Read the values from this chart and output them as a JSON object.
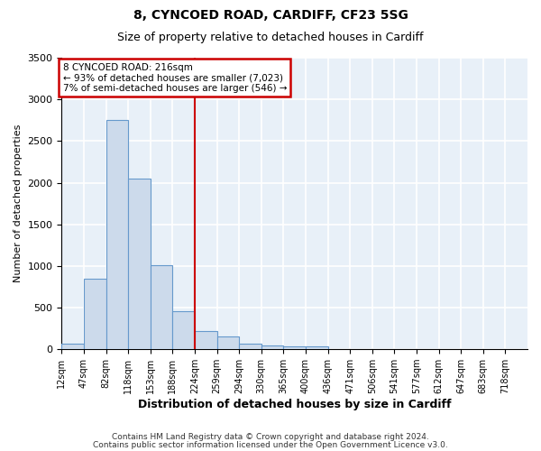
{
  "title1": "8, CYNCOED ROAD, CARDIFF, CF23 5SG",
  "title2": "Size of property relative to detached houses in Cardiff",
  "xlabel": "Distribution of detached houses by size in Cardiff",
  "ylabel": "Number of detached properties",
  "categories": [
    "12sqm",
    "47sqm",
    "82sqm",
    "118sqm",
    "153sqm",
    "188sqm",
    "224sqm",
    "259sqm",
    "294sqm",
    "330sqm",
    "365sqm",
    "400sqm",
    "436sqm",
    "471sqm",
    "506sqm",
    "541sqm",
    "577sqm",
    "612sqm",
    "647sqm",
    "683sqm",
    "718sqm"
  ],
  "bar_heights": [
    65,
    850,
    2750,
    2050,
    1010,
    460,
    220,
    150,
    65,
    50,
    35,
    30,
    0,
    0,
    0,
    0,
    0,
    0,
    0,
    0,
    0
  ],
  "bar_color": "#ccdaeb",
  "bar_edge_color": "#6699cc",
  "bar_edge_width": 0.8,
  "ylim": [
    0,
    3500
  ],
  "yticks": [
    0,
    500,
    1000,
    1500,
    2000,
    2500,
    3000,
    3500
  ],
  "red_line_x": 6,
  "red_line_color": "#cc0000",
  "annotation_text": "8 CYNCOED ROAD: 216sqm\n← 93% of detached houses are smaller (7,023)\n7% of semi-detached houses are larger (546) →",
  "annotation_box_color": "#ffffff",
  "annotation_box_edge_color": "#cc0000",
  "bg_color": "#e8f0f8",
  "fig_bg_color": "#ffffff",
  "grid_color": "#ffffff",
  "footer_text1": "Contains HM Land Registry data © Crown copyright and database right 2024.",
  "footer_text2": "Contains public sector information licensed under the Open Government Licence v3.0."
}
